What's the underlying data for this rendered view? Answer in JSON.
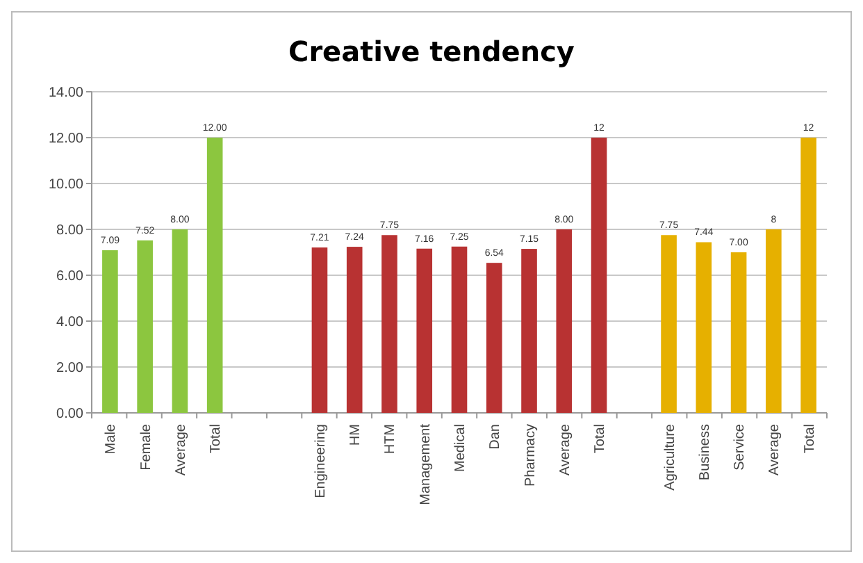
{
  "chart_data": {
    "type": "bar",
    "title": "Creative tendency",
    "categories": [
      "Male",
      "Female",
      "Average",
      "Total",
      null,
      null,
      "Engineering",
      "HM",
      "HTM",
      "Management",
      "Medical",
      "Dan",
      "Pharmacy",
      "Average",
      "Total",
      null,
      "Agriculture",
      "Business",
      "Service",
      "Average",
      "Total"
    ],
    "values": [
      7.09,
      7.52,
      8.0,
      12.0,
      null,
      null,
      7.21,
      7.24,
      7.75,
      7.16,
      7.25,
      6.54,
      7.15,
      8.0,
      12,
      null,
      7.75,
      7.44,
      7.0,
      8,
      12
    ],
    "value_labels": [
      "7.09",
      "7.52",
      "8.00",
      "12.00",
      null,
      null,
      "7.21",
      "7.24",
      "7.75",
      "7.16",
      "7.25",
      "6.54",
      "7.15",
      "8.00",
      "12",
      null,
      "7.75",
      "7.44",
      "7.00",
      "8",
      "12"
    ],
    "colors": [
      "#8cc63f",
      "#8cc63f",
      "#8cc63f",
      "#8cc63f",
      null,
      null,
      "#b83232",
      "#b83232",
      "#b83232",
      "#b83232",
      "#b83232",
      "#b83232",
      "#b83232",
      "#b83232",
      "#b83232",
      null,
      "#e6b000",
      "#e6b000",
      "#e6b000",
      "#e6b000",
      "#e6b000"
    ],
    "ylim": [
      0,
      14
    ],
    "yticks": [
      {
        "value": 0,
        "label": "0.00"
      },
      {
        "value": 2,
        "label": "2.00"
      },
      {
        "value": 4,
        "label": "4.00"
      },
      {
        "value": 6,
        "label": "6.00"
      },
      {
        "value": 8,
        "label": "8.00"
      },
      {
        "value": 10,
        "label": "10.00"
      },
      {
        "value": 12,
        "label": "12.00"
      },
      {
        "value": 14,
        "label": "14.00"
      }
    ],
    "grid": "y"
  }
}
